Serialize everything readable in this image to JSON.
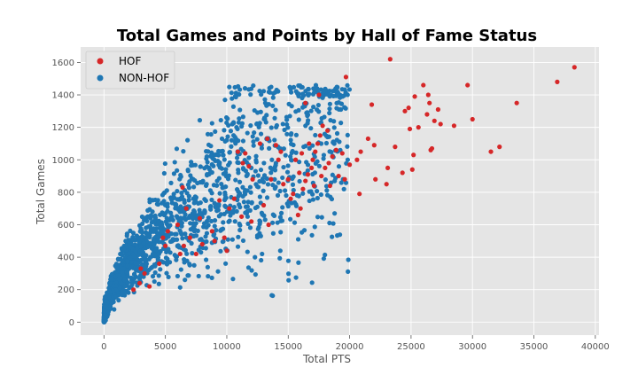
{
  "chart_data": {
    "type": "scatter",
    "title": "Total Games and Points by Hall of Fame Status",
    "xlabel": "Total PTS",
    "ylabel": "Total Games",
    "xlim": [
      -1900,
      40300
    ],
    "ylim": [
      -80,
      1695
    ],
    "xticks": [
      0,
      5000,
      10000,
      15000,
      20000,
      25000,
      30000,
      35000,
      40000
    ],
    "yticks": [
      0,
      200,
      400,
      600,
      800,
      1000,
      1200,
      1400,
      1600
    ],
    "grid": true,
    "legend_position": "upper-left",
    "series": [
      {
        "name": "HOF",
        "color": "#d62728",
        "points": [
          [
            2400,
            200
          ],
          [
            2900,
            240
          ],
          [
            3300,
            300
          ],
          [
            3700,
            220
          ],
          [
            3000,
            330
          ],
          [
            4500,
            360
          ],
          [
            5000,
            470
          ],
          [
            6200,
            420
          ],
          [
            6500,
            470
          ],
          [
            7000,
            520
          ],
          [
            7500,
            420
          ],
          [
            8000,
            480
          ],
          [
            9000,
            500
          ],
          [
            9800,
            520
          ],
          [
            10000,
            440
          ],
          [
            8800,
            560
          ],
          [
            7800,
            640
          ],
          [
            6700,
            700
          ],
          [
            6400,
            830
          ],
          [
            9400,
            750
          ],
          [
            10200,
            700
          ],
          [
            10600,
            760
          ],
          [
            11200,
            650
          ],
          [
            12000,
            620
          ],
          [
            13000,
            720
          ],
          [
            13400,
            600
          ],
          [
            12100,
            880
          ],
          [
            11300,
            980
          ],
          [
            11500,
            1040
          ],
          [
            10900,
            1050
          ],
          [
            12700,
            1100
          ],
          [
            13300,
            1130
          ],
          [
            14000,
            1090
          ],
          [
            14400,
            1050
          ],
          [
            13600,
            880
          ],
          [
            14600,
            850
          ],
          [
            15000,
            880
          ],
          [
            15200,
            760
          ],
          [
            15400,
            790
          ],
          [
            15800,
            660
          ],
          [
            16000,
            700
          ],
          [
            16200,
            820
          ],
          [
            16400,
            870
          ],
          [
            16600,
            910
          ],
          [
            16900,
            950
          ],
          [
            17000,
            1000
          ],
          [
            17200,
            1050
          ],
          [
            17400,
            1100
          ],
          [
            17600,
            1150
          ],
          [
            17800,
            1210
          ],
          [
            15600,
            1000
          ],
          [
            16100,
            1040
          ],
          [
            16700,
            1100
          ],
          [
            17100,
            840
          ],
          [
            17700,
            900
          ],
          [
            18000,
            950
          ],
          [
            18300,
            980
          ],
          [
            18600,
            1020
          ],
          [
            18900,
            1060
          ],
          [
            19100,
            900
          ],
          [
            19400,
            1040
          ],
          [
            19700,
            1510
          ],
          [
            18200,
            1180
          ],
          [
            16400,
            1350
          ],
          [
            17500,
            1400
          ],
          [
            20000,
            970
          ],
          [
            20600,
            1000
          ],
          [
            20900,
            1050
          ],
          [
            20800,
            790
          ],
          [
            21500,
            1130
          ],
          [
            21800,
            1340
          ],
          [
            22000,
            1090
          ],
          [
            22100,
            880
          ],
          [
            23000,
            850
          ],
          [
            23100,
            950
          ],
          [
            23300,
            1620
          ],
          [
            23700,
            1080
          ],
          [
            24300,
            920
          ],
          [
            24500,
            1300
          ],
          [
            24800,
            1320
          ],
          [
            24900,
            1190
          ],
          [
            25200,
            1030
          ],
          [
            25100,
            940
          ],
          [
            25300,
            1390
          ],
          [
            25600,
            1200
          ],
          [
            26000,
            1460
          ],
          [
            26300,
            1280
          ],
          [
            26400,
            1400
          ],
          [
            26500,
            1350
          ],
          [
            26600,
            1060
          ],
          [
            26700,
            1070
          ],
          [
            26900,
            1240
          ],
          [
            27200,
            1310
          ],
          [
            27400,
            1220
          ],
          [
            28500,
            1210
          ],
          [
            29600,
            1460
          ],
          [
            30000,
            1250
          ],
          [
            31500,
            1050
          ],
          [
            32200,
            1080
          ],
          [
            33600,
            1350
          ],
          [
            36900,
            1480
          ],
          [
            38300,
            1570
          ],
          [
            5200,
            560
          ],
          [
            6000,
            600
          ],
          [
            4800,
            520
          ],
          [
            11800,
            960
          ],
          [
            14200,
            1000
          ],
          [
            15900,
            920
          ],
          [
            18400,
            840
          ],
          [
            19600,
            880
          ]
        ]
      },
      {
        "name": "NON-HOF",
        "color": "#1f77b4"
      }
    ]
  }
}
